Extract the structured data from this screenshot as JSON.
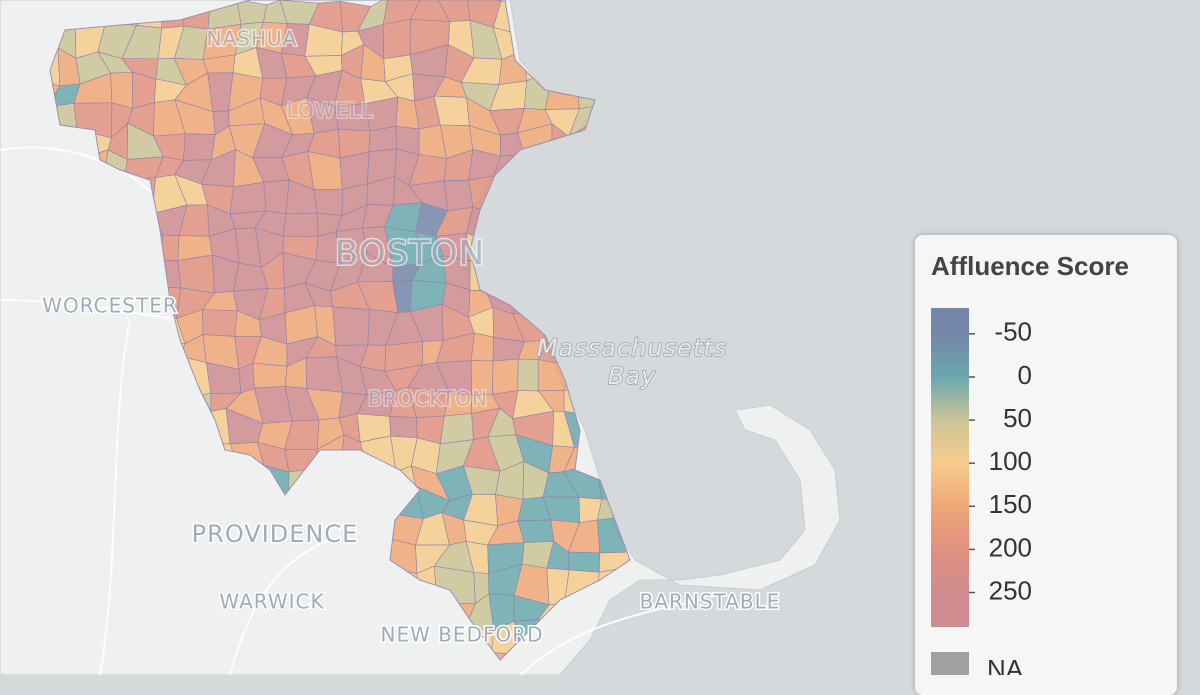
{
  "map": {
    "places": {
      "nashua": "NASHUA",
      "lowell": "LOWELL",
      "worcester": "WORCESTER",
      "boston": "BOSTON",
      "bay_line1": "Massachusetts",
      "bay_line2": "Bay",
      "brockton": "BROCKTON",
      "providence": "PROVIDENCE",
      "warwick": "WARWICK",
      "new_bedford": "NEW BEDFORD",
      "barnstable": "BARNSTABLE"
    },
    "legend": {
      "title": "Affluence Score",
      "limits": [
        -80,
        290
      ],
      "ticks": [
        -50,
        0,
        50,
        100,
        150,
        200,
        250
      ],
      "tick_colors": [
        "#7486a8",
        "#6aa8ae",
        "#cbc497",
        "#f6cc8c",
        "#efa777",
        "#e0907e",
        "#cf8c8f"
      ],
      "na_label": "NA",
      "na_color": "#a0a0a0"
    }
  }
}
